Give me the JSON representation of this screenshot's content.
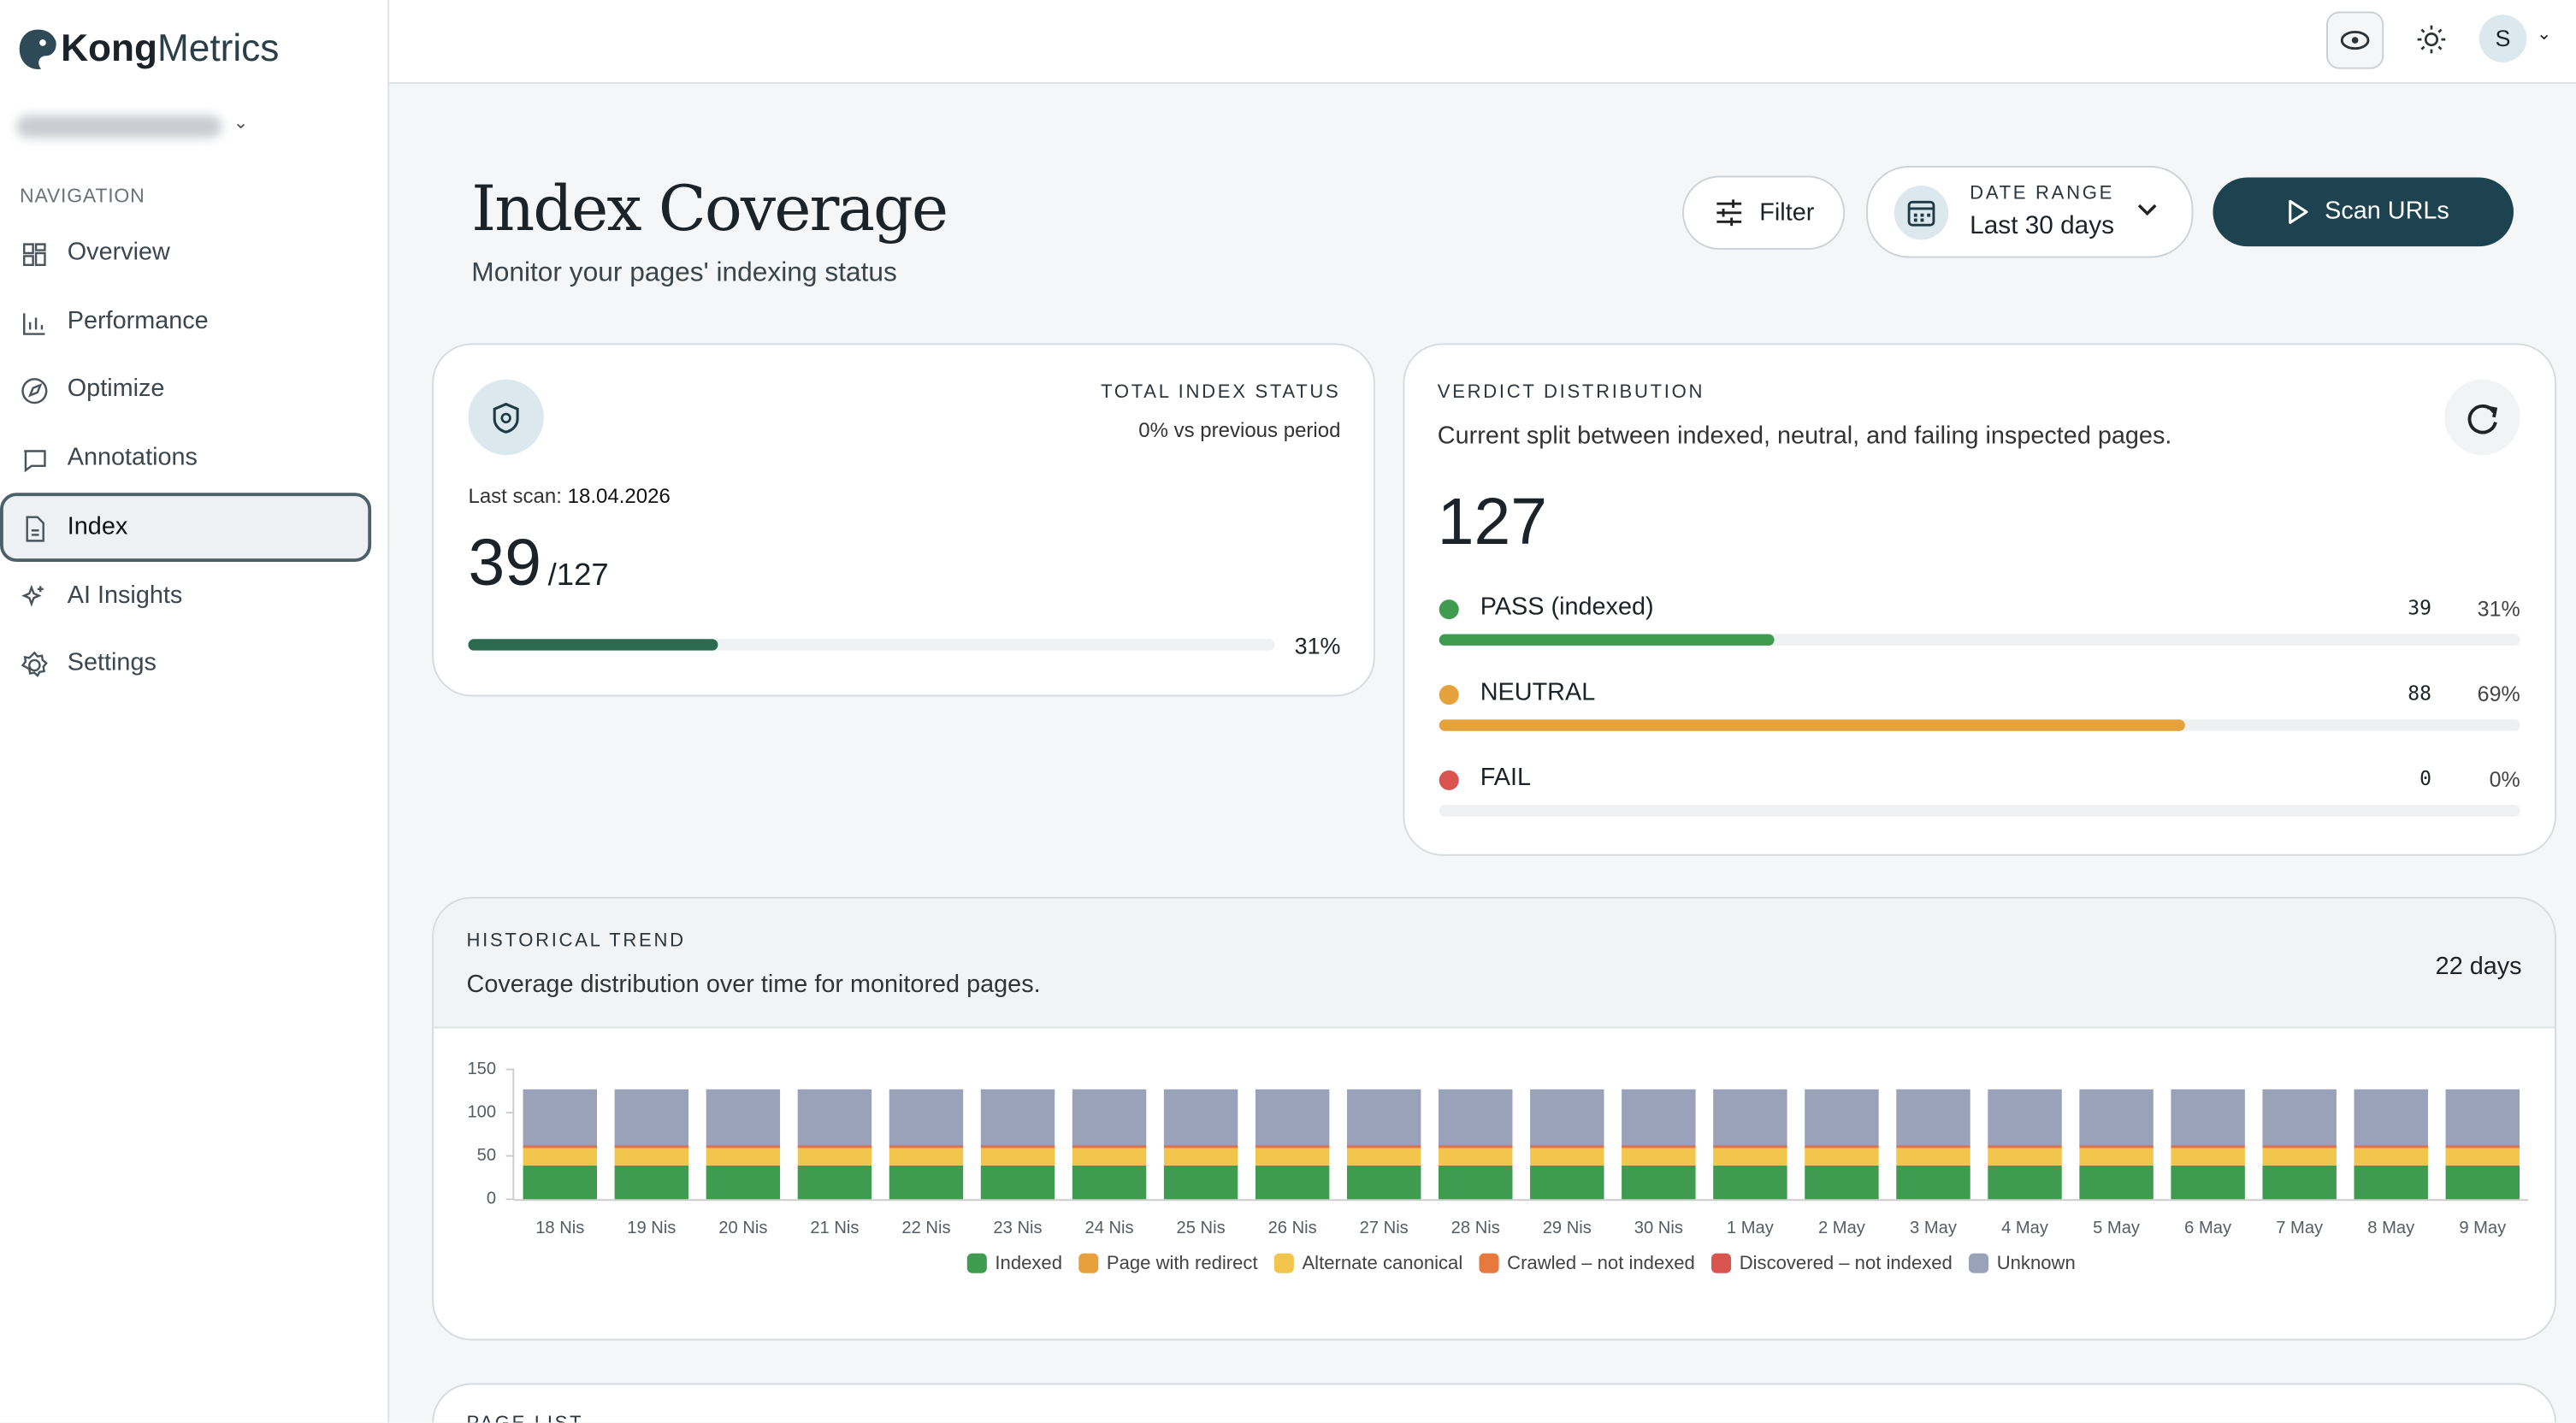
{
  "sidebar": {
    "logo_bold": "Kong",
    "logo_light": "Metrics",
    "section": "NAVIGATION",
    "items": [
      "Overview",
      "Performance",
      "Optimize",
      "Annotations",
      "Index",
      "AI Insights",
      "Settings"
    ]
  },
  "topbar": {
    "avatar": "S"
  },
  "header": {
    "title": "Index Coverage",
    "subtitle": "Monitor your pages' indexing status",
    "filter": "Filter",
    "date_range_label": "DATE RANGE",
    "date_range": "Last 30 days",
    "scan": "Scan URLs"
  },
  "total_card": {
    "title": "TOTAL INDEX STATUS",
    "change": "0% vs previous period",
    "last_scan_label": "Last scan:",
    "last_scan": "18.04.2026",
    "indexed": 39,
    "total_label": "/127",
    "percent": 31,
    "percent_label": "31%"
  },
  "verdict": {
    "title": "VERDICT DISTRIBUTION",
    "subtitle": "Current split between indexed, neutral, and failing inspected pages.",
    "total": 127,
    "rows": [
      {
        "name": "PASS (indexed)",
        "color": "#3f9b4f",
        "count": 39,
        "percent": 31,
        "percent_label": "31%"
      },
      {
        "name": "NEUTRAL",
        "color": "#e5a23a",
        "count": 88,
        "percent": 69,
        "percent_label": "69%"
      },
      {
        "name": "FAIL",
        "color": "#d9534f",
        "count": 0,
        "percent": 0,
        "percent_label": "0%"
      }
    ]
  },
  "history": {
    "title": "HISTORICAL TREND",
    "subtitle": "Coverage distribution over time for monitored pages.",
    "days_label": "22 days"
  },
  "page_list": {
    "title": "PAGE LIST"
  },
  "chart_data": {
    "type": "bar",
    "stacked": true,
    "legend": "bottom",
    "categories": [
      "18 Nis",
      "19 Nis",
      "20 Nis",
      "21 Nis",
      "22 Nis",
      "23 Nis",
      "24 Nis",
      "25 Nis",
      "26 Nis",
      "27 Nis",
      "28 Nis",
      "29 Nis",
      "30 Nis",
      "1 May",
      "2 May",
      "3 May",
      "4 May",
      "5 May",
      "6 May",
      "7 May",
      "8 May",
      "9 May"
    ],
    "ylim": [
      0,
      150
    ],
    "yticks": [
      0,
      50,
      100,
      150
    ],
    "series": [
      {
        "name": "Indexed",
        "color": "#3f9b4f",
        "values": [
          39,
          39,
          39,
          39,
          39,
          39,
          39,
          39,
          39,
          39,
          39,
          39,
          39,
          39,
          39,
          39,
          39,
          39,
          39,
          39,
          39,
          39
        ]
      },
      {
        "name": "Page with redirect",
        "color": "#e8a03c",
        "values": [
          0,
          0,
          0,
          0,
          0,
          0,
          0,
          0,
          0,
          0,
          0,
          0,
          0,
          0,
          0,
          0,
          0,
          0,
          0,
          0,
          0,
          0
        ]
      },
      {
        "name": "Alternate canonical",
        "color": "#f2c54c",
        "values": [
          20,
          20,
          20,
          20,
          20,
          20,
          20,
          20,
          20,
          20,
          20,
          20,
          20,
          20,
          20,
          20,
          20,
          20,
          20,
          20,
          20,
          20
        ]
      },
      {
        "name": "Crawled – not indexed",
        "color": "#e8793c",
        "values": [
          2,
          2,
          2,
          2,
          2,
          2,
          2,
          2,
          2,
          2,
          2,
          2,
          2,
          2,
          2,
          2,
          2,
          2,
          2,
          2,
          2,
          2
        ]
      },
      {
        "name": "Discovered – not indexed",
        "color": "#d9534f",
        "values": [
          1,
          1,
          1,
          1,
          1,
          1,
          1,
          1,
          1,
          1,
          1,
          1,
          1,
          1,
          1,
          1,
          1,
          1,
          1,
          1,
          1,
          1
        ]
      },
      {
        "name": "Unknown",
        "color": "#99a2b8",
        "values": [
          65,
          65,
          65,
          65,
          65,
          65,
          65,
          65,
          65,
          65,
          65,
          65,
          65,
          65,
          65,
          65,
          65,
          65,
          65,
          65,
          65,
          65
        ]
      }
    ]
  }
}
